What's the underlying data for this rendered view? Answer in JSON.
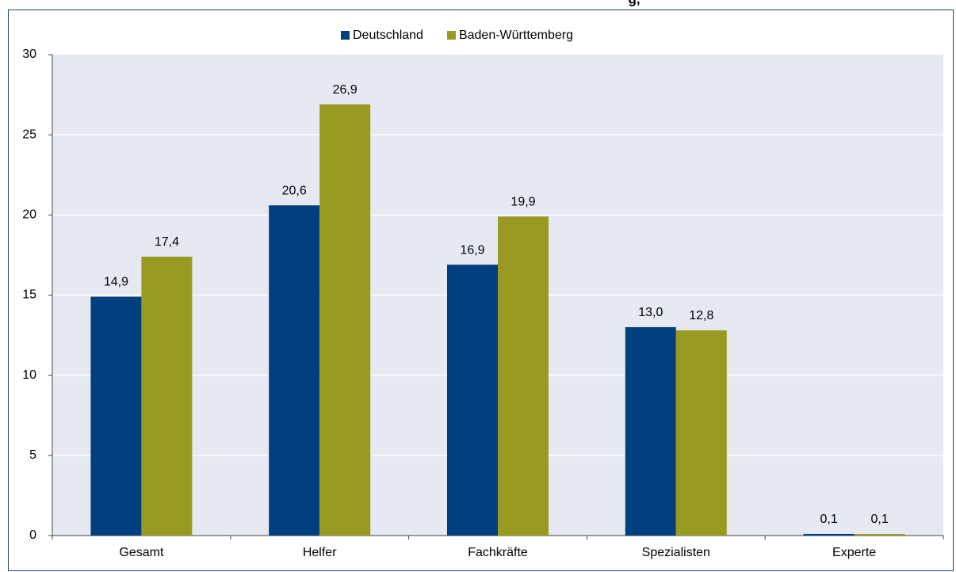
{
  "chart_data": {
    "type": "bar",
    "title": "g,",
    "categories": [
      "Gesamt",
      "Helfer",
      "Fachkräfte",
      "Spezialisten",
      "Experte"
    ],
    "series": [
      {
        "name": "Deutschland",
        "color": "#003f7f",
        "values": [
          14.9,
          20.6,
          16.9,
          13.0,
          0.1
        ],
        "value_labels": [
          "14,9",
          "20,6",
          "16,9",
          "13,0",
          "0,1"
        ]
      },
      {
        "name": "Baden-Württemberg",
        "color": "#9a9a22",
        "values": [
          17.4,
          26.9,
          19.9,
          12.8,
          0.1
        ],
        "value_labels": [
          "17,4",
          "26,9",
          "19,9",
          "12,8",
          "0,1"
        ]
      }
    ],
    "ylim": [
      0,
      30
    ],
    "yticks": [
      0,
      5,
      10,
      15,
      20,
      25,
      30
    ],
    "grid": true,
    "legend": "top"
  }
}
